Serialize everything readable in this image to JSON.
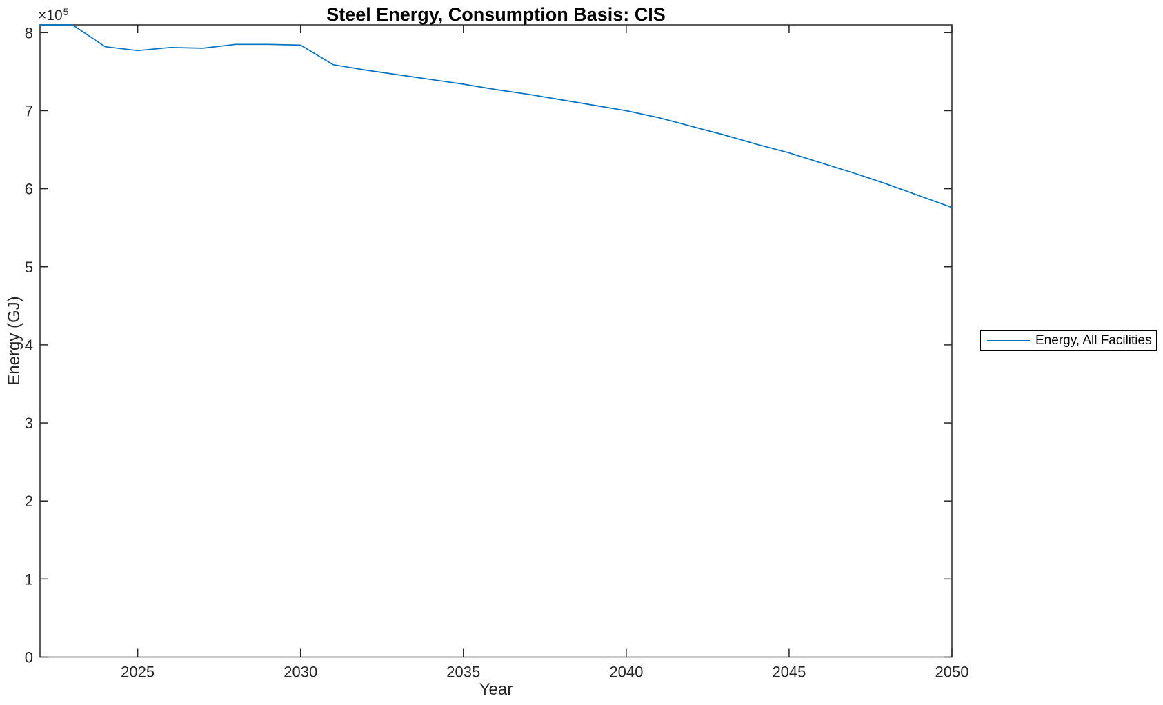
{
  "chart_data": {
    "type": "line",
    "title": "Steel Energy, Consumption Basis: CIS",
    "xlabel": "Year",
    "ylabel": "Energy (GJ)",
    "x": [
      2022,
      2023,
      2024,
      2025,
      2026,
      2027,
      2028,
      2029,
      2030,
      2031,
      2032,
      2033,
      2034,
      2035,
      2036,
      2037,
      2038,
      2039,
      2040,
      2041,
      2042,
      2043,
      2044,
      2045,
      2046,
      2047,
      2048,
      2049,
      2050
    ],
    "series": [
      {
        "name": "Energy, All Facilities",
        "color": "#0072BD",
        "values": [
          810000,
          810000,
          782000,
          777000,
          781000,
          780000,
          785000,
          785000,
          784000,
          759000,
          752000,
          746000,
          740000,
          734000,
          727000,
          721000,
          714000,
          707000,
          700000,
          691000,
          680000,
          669000,
          657000,
          646000,
          633000,
          620000,
          606000,
          591000,
          576000
        ]
      }
    ],
    "xlim": [
      2022,
      2050
    ],
    "ylim": [
      0,
      810000
    ],
    "xticks": [
      2025,
      2030,
      2035,
      2040,
      2045,
      2050
    ],
    "ytick_values": [
      0,
      100000,
      200000,
      300000,
      400000,
      500000,
      600000,
      700000,
      800000
    ],
    "ytick_labels": [
      "0",
      "1",
      "2",
      "3",
      "4",
      "5",
      "6",
      "7",
      "8"
    ],
    "y_offset_base": "×10",
    "y_offset_exp": "5",
    "grid": false,
    "legend_position": "right-outside"
  },
  "legend": {
    "entries": [
      {
        "label": "Energy, All Facilities",
        "color": "#0072BD"
      }
    ]
  },
  "colors": {
    "line": "#0072BD",
    "axis": "#262626",
    "tick_text": "#262626",
    "title_text": "#000000",
    "background": "#FFFFFF",
    "legend_border": "#000000"
  }
}
